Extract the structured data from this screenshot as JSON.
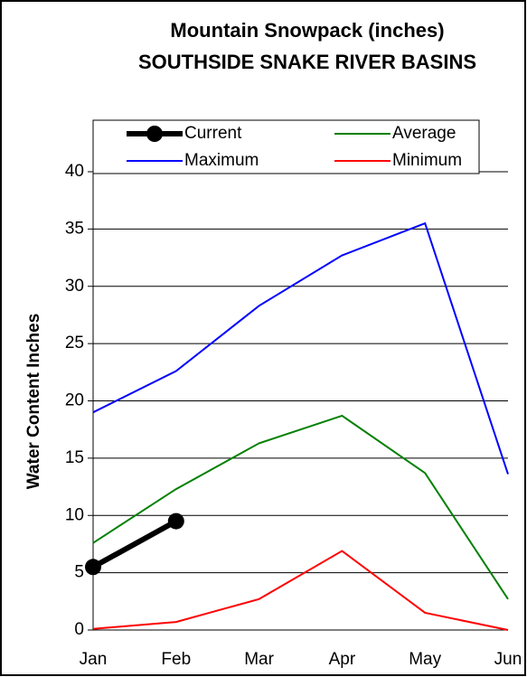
{
  "chart_data": {
    "type": "line",
    "title": "Mountain Snowpack (inches) SOUTHSIDE SNAKE RIVER BASINS",
    "y_label": "Water Content Inches",
    "categories": [
      "Jan",
      "Feb",
      "Mar",
      "Apr",
      "May",
      "Jun"
    ],
    "series": [
      {
        "name": "Current",
        "color": "#000000",
        "marker": "circle",
        "values": [
          5.5,
          9.5,
          null,
          null,
          null,
          null
        ]
      },
      {
        "name": "Average",
        "color": "#008000",
        "values": [
          7.6,
          12.3,
          16.3,
          18.7,
          13.7,
          2.7
        ]
      },
      {
        "name": "Maximum",
        "color": "#0000ff",
        "values": [
          19.0,
          22.6,
          28.3,
          32.7,
          35.5,
          13.6
        ]
      },
      {
        "name": "Minimum",
        "color": "#ff0000",
        "values": [
          0.1,
          0.7,
          2.7,
          6.9,
          1.5,
          0
        ]
      }
    ],
    "ylim": [
      0,
      40
    ],
    "yticks": [
      0,
      5,
      10,
      15,
      20,
      25,
      30,
      35,
      40
    ],
    "grid": true,
    "legend": "top"
  }
}
